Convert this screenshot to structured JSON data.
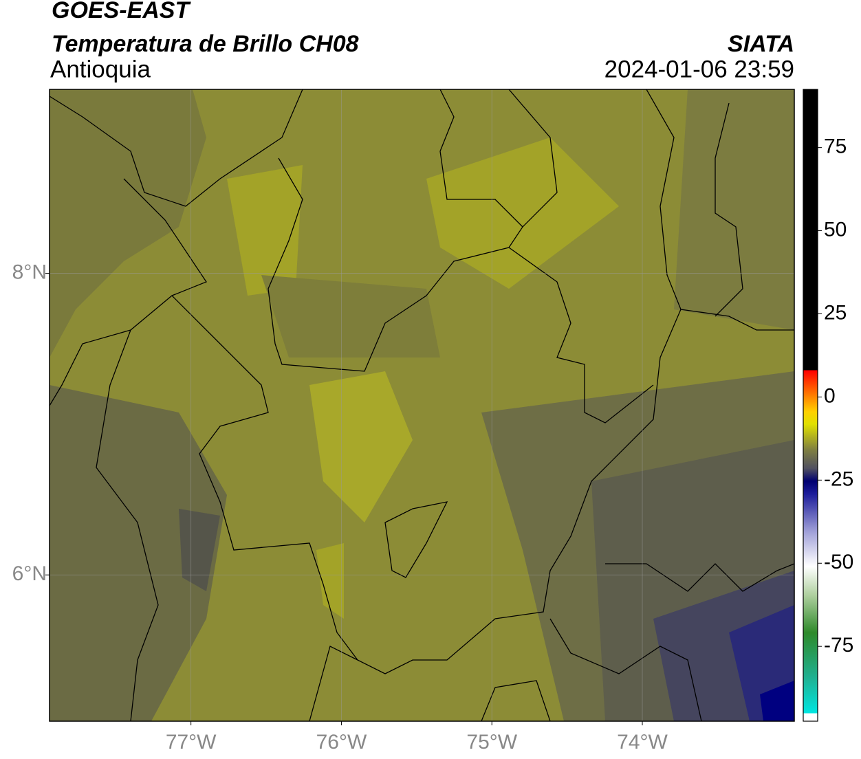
{
  "header": {
    "title": "GOES-EAST",
    "subtitle": "Temperatura de Brillo CH08",
    "region": "Antioquia",
    "source": "SIATA",
    "timestamp": "2024-01-06 23:59"
  },
  "map": {
    "xlim": [
      -77.94,
      -72.99
    ],
    "ylim": [
      5.03,
      9.22
    ],
    "xticks": [
      {
        "value": -77,
        "label": "77°W"
      },
      {
        "value": -76,
        "label": "76°W"
      },
      {
        "value": -75,
        "label": "75°W"
      },
      {
        "value": -74,
        "label": "74°W"
      }
    ],
    "yticks": [
      {
        "value": 8,
        "label": "8°N"
      },
      {
        "value": 6,
        "label": "6°N"
      }
    ],
    "grid": true
  },
  "colorbar": {
    "lim": [
      -97.5,
      92.5
    ],
    "ticks": [
      75,
      50,
      25,
      0,
      -25,
      -50,
      -75
    ]
  }
}
